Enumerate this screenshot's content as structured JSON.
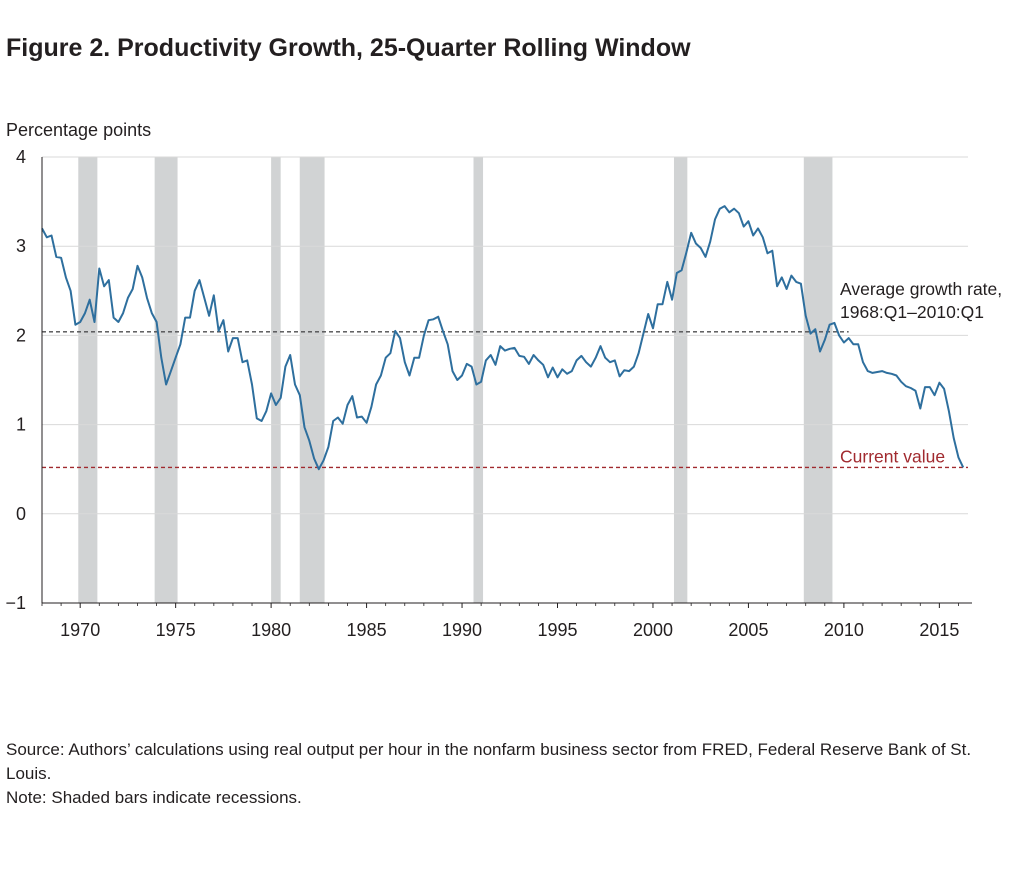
{
  "figure": {
    "title": "Figure 2. Productivity Growth, 25-Quarter Rolling Window",
    "source": "Source: Authors’ calculations using real output per hour in the nonfarm business sector from FRED, Federal Reserve Bank of St. Louis.",
    "note": "Note: Shaded bars indicate recessions."
  },
  "chart_data": {
    "type": "line",
    "title": "Figure 2. Productivity Growth, 25-Quarter Rolling Window",
    "ylabel": "Percentage points",
    "xlabel": "",
    "xlim": [
      1968.0,
      2016.5
    ],
    "ylim": [
      -1,
      4
    ],
    "yticks": [
      -1,
      0,
      1,
      2,
      3,
      4
    ],
    "ytick_labels": [
      "−1",
      "0",
      "1",
      "2",
      "3",
      "4"
    ],
    "xticks": [
      1970,
      1975,
      1980,
      1985,
      1990,
      1995,
      2000,
      2005,
      2010,
      2015
    ],
    "xtick_labels": [
      "1970",
      "1975",
      "1980",
      "1985",
      "1990",
      "1995",
      "2000",
      "2005",
      "2010",
      "2015"
    ],
    "grid": true,
    "colors": {
      "series": "#2e6f9e",
      "recession": "#d1d3d4",
      "average_line": "#4d4d4f",
      "current_line": "#a12a2f",
      "grid": "#d9d9d9",
      "axis": "#231f20"
    },
    "recessions": [
      [
        1969.9,
        1970.9
      ],
      [
        1973.9,
        1975.1
      ],
      [
        1980.0,
        1980.5
      ],
      [
        1981.5,
        1982.8
      ],
      [
        1990.6,
        1991.1
      ],
      [
        2001.1,
        2001.8
      ],
      [
        2007.9,
        2009.4
      ]
    ],
    "reference_lines": [
      {
        "name": "Average growth rate, 1968:Q1–2010:Q1",
        "label_line1": "Average growth rate,",
        "label_line2": "1968:Q1–2010:Q1",
        "value": 2.04,
        "style": "dashed"
      },
      {
        "name": "Current value",
        "label": "Current value",
        "value": 0.52,
        "style": "dashed"
      }
    ],
    "series": [
      {
        "name": "",
        "x": [
          1968.0,
          1968.25,
          1968.5,
          1968.75,
          1969.0,
          1969.25,
          1969.5,
          1969.75,
          1970.0,
          1970.25,
          1970.5,
          1970.75,
          1971.0,
          1971.25,
          1971.5,
          1971.75,
          1972.0,
          1972.25,
          1972.5,
          1972.75,
          1973.0,
          1973.25,
          1973.5,
          1973.75,
          1974.0,
          1974.25,
          1974.5,
          1974.75,
          1975.0,
          1975.25,
          1975.5,
          1975.75,
          1976.0,
          1976.25,
          1976.5,
          1976.75,
          1977.0,
          1977.25,
          1977.5,
          1977.75,
          1978.0,
          1978.25,
          1978.5,
          1978.75,
          1979.0,
          1979.25,
          1979.5,
          1979.75,
          1980.0,
          1980.25,
          1980.5,
          1980.75,
          1981.0,
          1981.25,
          1981.5,
          1981.75,
          1982.0,
          1982.25,
          1982.5,
          1982.75,
          1983.0,
          1983.25,
          1983.5,
          1983.75,
          1984.0,
          1984.25,
          1984.5,
          1984.75,
          1985.0,
          1985.25,
          1985.5,
          1985.75,
          1986.0,
          1986.25,
          1986.5,
          1986.75,
          1987.0,
          1987.25,
          1987.5,
          1987.75,
          1988.0,
          1988.25,
          1988.5,
          1988.75,
          1989.0,
          1989.25,
          1989.5,
          1989.75,
          1990.0,
          1990.25,
          1990.5,
          1990.75,
          1991.0,
          1991.25,
          1991.5,
          1991.75,
          1992.0,
          1992.25,
          1992.5,
          1992.75,
          1993.0,
          1993.25,
          1993.5,
          1993.75,
          1994.0,
          1994.25,
          1994.5,
          1994.75,
          1995.0,
          1995.25,
          1995.5,
          1995.75,
          1996.0,
          1996.25,
          1996.5,
          1996.75,
          1997.0,
          1997.25,
          1997.5,
          1997.75,
          1998.0,
          1998.25,
          1998.5,
          1998.75,
          1999.0,
          1999.25,
          1999.5,
          1999.75,
          2000.0,
          2000.25,
          2000.5,
          2000.75,
          2001.0,
          2001.25,
          2001.5,
          2001.75,
          2002.0,
          2002.25,
          2002.5,
          2002.75,
          2003.0,
          2003.25,
          2003.5,
          2003.75,
          2004.0,
          2004.25,
          2004.5,
          2004.75,
          2005.0,
          2005.25,
          2005.5,
          2005.75,
          2006.0,
          2006.25,
          2006.5,
          2006.75,
          2007.0,
          2007.25,
          2007.5,
          2007.75,
          2008.0,
          2008.25,
          2008.5,
          2008.75,
          2009.0,
          2009.25,
          2009.5,
          2009.75,
          2010.0,
          2010.25,
          2010.5,
          2010.75,
          2011.0,
          2011.25,
          2011.5,
          2011.75,
          2012.0,
          2012.25,
          2012.5,
          2012.75,
          2013.0,
          2013.25,
          2013.5,
          2013.75,
          2014.0,
          2014.25,
          2014.5,
          2014.75,
          2015.0,
          2015.25,
          2015.5,
          2015.75,
          2016.0,
          2016.25
        ],
        "values": [
          3.2,
          3.1,
          3.12,
          2.88,
          2.87,
          2.65,
          2.5,
          2.12,
          2.15,
          2.25,
          2.4,
          2.15,
          2.75,
          2.55,
          2.62,
          2.2,
          2.15,
          2.25,
          2.42,
          2.52,
          2.78,
          2.65,
          2.42,
          2.25,
          2.15,
          1.75,
          1.45,
          1.6,
          1.75,
          1.9,
          2.2,
          2.2,
          2.5,
          2.62,
          2.42,
          2.22,
          2.45,
          2.05,
          2.17,
          1.82,
          1.97,
          1.97,
          1.7,
          1.72,
          1.45,
          1.07,
          1.04,
          1.15,
          1.35,
          1.22,
          1.3,
          1.65,
          1.78,
          1.45,
          1.33,
          0.97,
          0.82,
          0.62,
          0.5,
          0.6,
          0.75,
          1.04,
          1.08,
          1.01,
          1.22,
          1.32,
          1.08,
          1.09,
          1.02,
          1.2,
          1.45,
          1.55,
          1.75,
          1.8,
          2.05,
          1.97,
          1.7,
          1.55,
          1.75,
          1.75,
          2.0,
          2.17,
          2.18,
          2.21,
          2.05,
          1.9,
          1.6,
          1.5,
          1.55,
          1.68,
          1.65,
          1.45,
          1.48,
          1.72,
          1.78,
          1.67,
          1.88,
          1.83,
          1.85,
          1.86,
          1.77,
          1.76,
          1.68,
          1.78,
          1.72,
          1.67,
          1.53,
          1.64,
          1.53,
          1.62,
          1.57,
          1.6,
          1.72,
          1.77,
          1.7,
          1.65,
          1.75,
          1.88,
          1.75,
          1.7,
          1.72,
          1.54,
          1.61,
          1.6,
          1.65,
          1.8,
          2.02,
          2.24,
          2.08,
          2.35,
          2.35,
          2.6,
          2.4,
          2.7,
          2.73,
          2.93,
          3.15,
          3.03,
          2.98,
          2.88,
          3.05,
          3.3,
          3.42,
          3.45,
          3.38,
          3.42,
          3.37,
          3.22,
          3.28,
          3.12,
          3.2,
          3.1,
          2.92,
          2.95,
          2.55,
          2.65,
          2.52,
          2.67,
          2.6,
          2.58,
          2.22,
          2.02,
          2.07,
          1.82,
          1.95,
          2.12,
          2.14,
          2.0,
          1.92,
          1.97,
          1.9,
          1.9,
          1.7,
          1.6,
          1.58,
          1.59,
          1.6,
          1.58,
          1.57,
          1.55,
          1.48,
          1.43,
          1.41,
          1.38,
          1.18,
          1.42,
          1.42,
          1.33,
          1.47,
          1.4,
          1.15,
          0.85,
          0.63,
          0.52
        ]
      }
    ]
  }
}
